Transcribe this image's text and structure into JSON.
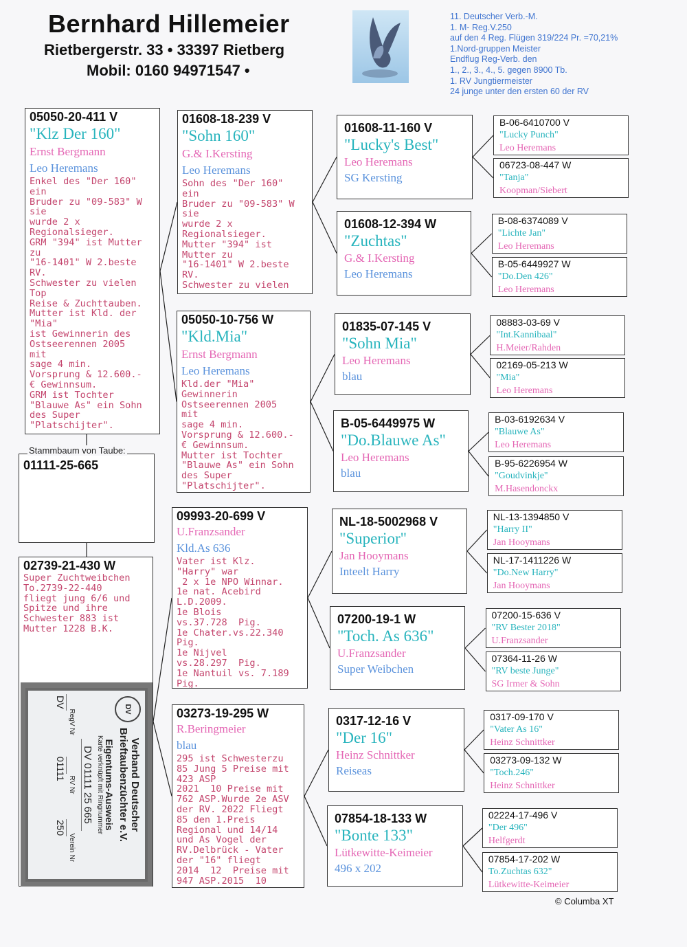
{
  "header": {
    "name": "Bernhard Hillemeier",
    "address": "Rietbergerstr. 33 • 33397 Rietberg",
    "phone": "Mobil:  0160 94971547 •",
    "achievements": [
      "11. Deutscher Verb.-M.",
      "1. M- Reg.V.250",
      "auf den 4 Reg. Flügen 319/224 Pr. =70,21%",
      "1.Nord-gruppen Meister",
      "Endflug Reg-Verb. den",
      "1., 2., 3., 4., 5. gegen 8900 Tb.",
      "1. RV Jungtiermeister",
      "24 junge unter den ersten 60 der RV"
    ]
  },
  "subject": {
    "label": "Stammbaum von Taube:",
    "ring": "01111-25-665"
  },
  "parents": [
    {
      "ring": "05050-20-411 V",
      "name": "\"Klz Der 160\"",
      "breeder": "Ernst Bergmann",
      "extra": "Leo Heremans",
      "notes": "Enkel des \"Der 160\"\nein\nBruder zu \"09-583\" W\nsie\nwurde 2 x\nRegionalsieger.\nGRM \"394\" ist Mutter\nzu\n\"16-1401\" W 2.beste\nRV.\nSchwester zu vielen\nTop\nReise & Zuchttauben.\nMutter ist Kld. der\n\"Mia\"\nist Gewinnerin des\nOstseerennen 2005\nmit\nsage 4 min.\nVorsprung & 12.600.-\n€ Gewinnsum.\nGRM ist Tochter\n\"Blauwe As\" ein Sohn\ndes Super\n\"Platschijter\"."
    },
    {
      "ring": "02739-21-430 W",
      "name": "",
      "breeder": "",
      "extra": "",
      "notes": "Super Zuchtweibchen\nTo.2739-22-440\nfliegt jung 6/6 und\nSpitze und ihre\nSchwester 883 ist\nMutter 1228 B.K."
    }
  ],
  "grandparents": [
    {
      "ring": "01608-18-239 V",
      "name": "\"Sohn 160\"",
      "breeder": "G.& I.Kersting",
      "extra": "Leo Heremans",
      "notes": "Sohn des \"Der 160\"\nein\nBruder zu \"09-583\" W\nsie\nwurde 2 x\nRegionalsieger.\nMutter \"394\" ist\nMutter zu\n\"16-1401\" W 2.beste\nRV.\nSchwester zu vielen"
    },
    {
      "ring": "05050-10-756 W",
      "name": "\"Kld.Mia\"",
      "breeder": "Ernst Bergmann",
      "extra": "Leo Heremans",
      "notes": "Kld.der \"Mia\"\nGewinnerin\nOstseerennen 2005\nmit\nsage 4 min.\nVorsprung & 12.600.-\n€ Gewinnsum.\nMutter ist Tochter\n\"Blauwe As\" ein Sohn\ndes Super\n\"Platschijter\"."
    },
    {
      "ring": "09993-20-699 V",
      "name": "",
      "breeder": "U.Franzsander",
      "extra": "Kld.As 636",
      "notes": "Vater ist Klz.\n\"Harry\" war\n 2 x 1e NPO Winnar.\n1e nat. Acebird\nL.D.2009.\n1e Blois\nvs.37.728  Pig.\n1e Chater.vs.22.340\nPig.\n1e Nijvel\nvs.28.297  Pig.\n1e Nantuil vs. 7.189\nPig."
    },
    {
      "ring": "03273-19-295 W",
      "name": "",
      "breeder": "R.Beringmeier",
      "extra": "blau",
      "notes": "295 ist Schwesterzu\n85 Jung 5 Preise mit\n423 ASP\n2021  10 Preise mit\n762 ASP.Wurde 2e ASV\nder RV. 2022 Fliegt\n85 den 1.Preis\nRegional und 14/14\nund As Vogel der\nRV.Delbrück - Vater\nder \"16\" fliegt\n2014  12  Preise mit\n947 ASP.2015  10"
    }
  ],
  "great_grandparents": [
    {
      "ring": "01608-11-160 V",
      "name": "\"Lucky's Best\"",
      "breeder": "Leo Heremans",
      "extra": "SG Kersting"
    },
    {
      "ring": "01608-12-394 W",
      "name": "\"Zuchtas\"",
      "breeder": "G.& I.Kersting",
      "extra": "Leo Heremans"
    },
    {
      "ring": "01835-07-145 V",
      "name": "\"Sohn Mia\"",
      "breeder": "Leo Heremans",
      "extra": "blau"
    },
    {
      "ring": "B-05-6449975 W",
      "name": "\"Do.Blauwe As\"",
      "breeder": "Leo Heremans",
      "extra": "blau"
    },
    {
      "ring": "NL-18-5002968 V",
      "name": "\"Superior\"",
      "breeder": "Jan Hooymans",
      "extra": "Inteelt Harry"
    },
    {
      "ring": "07200-19-1 W",
      "name": "\"Toch. As 636\"",
      "breeder": "U.Franzsander",
      "extra": "Super Weibchen"
    },
    {
      "ring": "0317-12-16 V",
      "name": "\"Der 16\"",
      "breeder": "Heinz Schnittker",
      "extra": "Reiseas"
    },
    {
      "ring": "07854-18-133 W",
      "name": "\"Bonte 133\"",
      "breeder": "Lütkewitte-Keimeier",
      "extra": "496 x 202"
    }
  ],
  "great_great_grandparents": [
    {
      "ring": "B-06-6410700 V",
      "name": "\"Lucky Punch\"",
      "breeder": "Leo Heremans"
    },
    {
      "ring": "06723-08-447 W",
      "name": "\"Tanja\"",
      "breeder": "Koopman/Siebert"
    },
    {
      "ring": "B-08-6374089 V",
      "name": "\"Lichte Jan\"",
      "breeder": "Leo Heremans"
    },
    {
      "ring": "B-05-6449927 W",
      "name": "\"Do.Den 426\"",
      "breeder": "Leo Heremans"
    },
    {
      "ring": "08883-03-69 V",
      "name": "\"Int.Kannibaal\"",
      "breeder": "H.Meier/Rahden"
    },
    {
      "ring": "02169-05-213 W",
      "name": "\"Mia\"",
      "breeder": "Leo Heremans"
    },
    {
      "ring": "B-03-6192634 V",
      "name": "\"Blauwe  As\"",
      "breeder": "Leo Heremans"
    },
    {
      "ring": "B-95-6226954 W",
      "name": "\"Goudvinkje\"",
      "breeder": "M.Hasendonckx"
    },
    {
      "ring": "NL-13-1394850 V",
      "name": "\"Harry II\"",
      "breeder": "Jan Hooymans"
    },
    {
      "ring": "NL-17-1411226 W",
      "name": "\"Do.New Harry\"",
      "breeder": "Jan Hooymans"
    },
    {
      "ring": "07200-15-636 V",
      "name": "\"RV Bester 2018\"",
      "breeder": "U.Franzsander"
    },
    {
      "ring": "07364-11-26 W",
      "name": "\"RV beste Junge\"",
      "breeder": "SG Irmer & Sohn"
    },
    {
      "ring": "0317-09-170 V",
      "name": "\"Vater As 16\"",
      "breeder": "Heinz Schnittker"
    },
    {
      "ring": "03273-09-132 W",
      "name": "\"Toch.246\"",
      "breeder": "Heinz Schnittker"
    },
    {
      "ring": "02224-17-496 V",
      "name": "\"Der 496\"",
      "breeder": "Helfgerdt"
    },
    {
      "ring": "07854-17-202 W",
      "name": "To.Zuchtas 632\"",
      "breeder": "Lütkewitte-Keimeier"
    }
  ],
  "id_card": {
    "org_line1": "Verband Deutscher",
    "org_line2": "Brieftaubenzüchter e.V.",
    "title": "Eigentums-Ausweis",
    "subtitle": "Karte verknüpft mit Ringnummer",
    "ring": "DV 01111 25 665",
    "logo_text": "DV",
    "fields": [
      {
        "label": "RegV Nr",
        "value": "DV"
      },
      {
        "label": "RV Nr",
        "value": "01111"
      },
      {
        "label": "Verein Nr",
        "value": "250"
      }
    ]
  },
  "footer": {
    "copyright": "© Columba XT"
  },
  "colors": {
    "pigeon_name": "#28b4bd",
    "breeder": "#e466b4",
    "secondary": "#5a92dc",
    "notes": "#c4466e",
    "achievements": "#3f74d0"
  }
}
